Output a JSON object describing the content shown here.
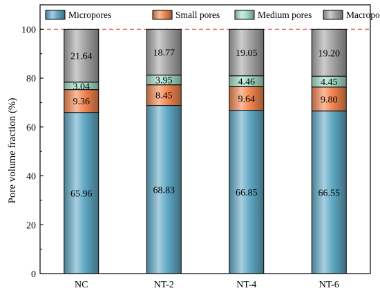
{
  "chart_data": {
    "type": "bar",
    "stacked": true,
    "categories": [
      "NC",
      "NT-2",
      "NT-4",
      "NT-6"
    ],
    "series": [
      {
        "name": "Micropores",
        "values": [
          65.96,
          68.83,
          66.85,
          66.55
        ],
        "labels": [
          "65.96",
          "68.83",
          "66.85",
          "66.55"
        ],
        "color": "#5fa8c4"
      },
      {
        "name": "Small pores",
        "values": [
          9.36,
          8.45,
          9.64,
          9.8
        ],
        "labels": [
          "9.36",
          "8.45",
          "9.64",
          "9.80"
        ],
        "color": "#f2854f"
      },
      {
        "name": "Medium pores",
        "values": [
          3.04,
          3.95,
          4.46,
          4.45
        ],
        "labels": [
          "3.04",
          "3.95",
          "4.46",
          "4.45"
        ],
        "color": "#a3dcc6"
      },
      {
        "name": "Macropores",
        "values": [
          21.64,
          18.77,
          19.05,
          19.2
        ],
        "labels": [
          "21.64",
          "18.77",
          "19.05",
          "19.20"
        ],
        "color": "#a4a4a4"
      }
    ],
    "ylabel": "Pore volume fraction (%)",
    "xlabel": "",
    "ylim": [
      0,
      110
    ],
    "yticks": [
      "0",
      "20",
      "40",
      "60",
      "80",
      "100"
    ],
    "reference_line": {
      "y": 100,
      "style": "dashed",
      "color": "#e05656"
    },
    "legend_position": "top",
    "grid": false
  }
}
